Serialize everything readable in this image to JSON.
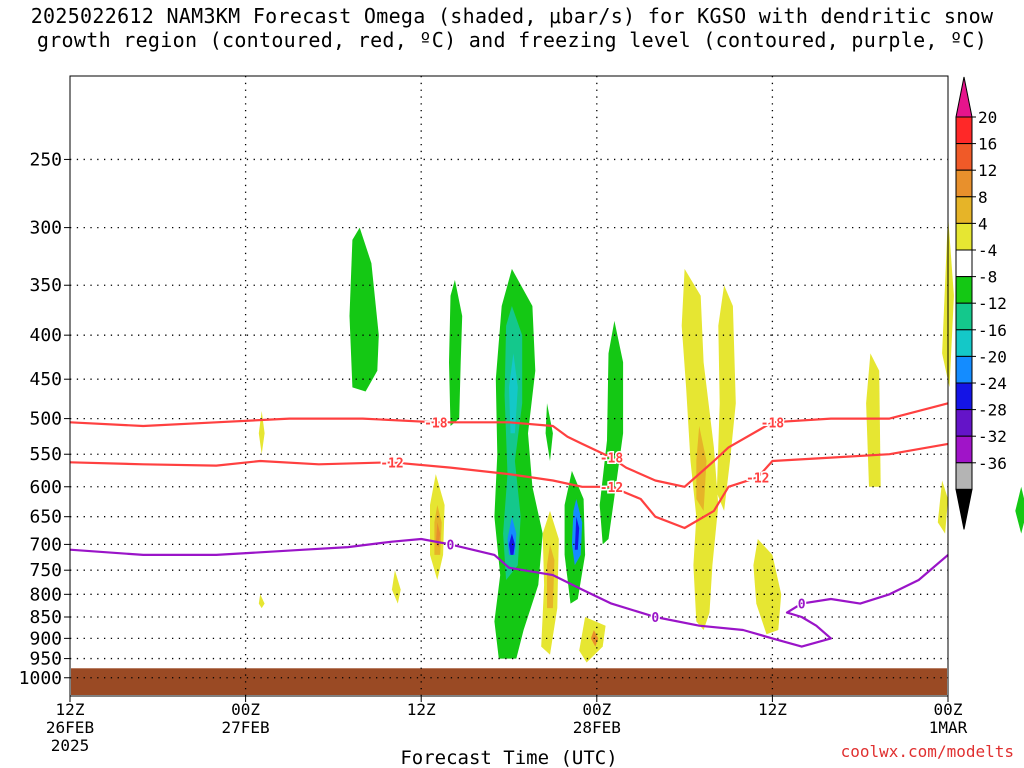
{
  "title": {
    "line1": "2025022612 NAM3KM Forecast Omega (shaded, μbar/s) for KGSO with dendritic snow",
    "line2": "growth region (contoured, red, ºC) and freezing level (contoured, purple, ºC)"
  },
  "credit": "coolwx.com/modelts",
  "chart_data": {
    "type": "heatmap",
    "title": "2025022612 NAM3KM Forecast Omega (shaded, μbar/s) for KGSO with dendritic snow growth region (contoured, red, ºC) and freezing level (contoured, purple, ºC)",
    "xlabel": "Forecast Time (UTC)",
    "ylabel": "",
    "xlim_hours": [
      0,
      60
    ],
    "ylim_hpa": [
      1050,
      200
    ],
    "y_scale": "log",
    "yticks": [
      250,
      300,
      350,
      400,
      450,
      500,
      550,
      600,
      650,
      700,
      750,
      800,
      850,
      900,
      950,
      1000
    ],
    "xticks": [
      {
        "hour": 0,
        "lines": [
          "12Z",
          "26FEB",
          "2025"
        ]
      },
      {
        "hour": 12,
        "lines": [
          "00Z",
          "27FEB"
        ]
      },
      {
        "hour": 24,
        "lines": [
          "12Z"
        ]
      },
      {
        "hour": 36,
        "lines": [
          "00Z",
          "28FEB"
        ]
      },
      {
        "hour": 48,
        "lines": [
          "12Z"
        ]
      },
      {
        "hour": 60,
        "lines": [
          "00Z",
          "1MAR"
        ]
      }
    ],
    "grid": true,
    "ground_pressure": 975,
    "ground_color": "#9a4a24",
    "colorbar": {
      "labels": [
        "20",
        "16",
        "12",
        "8",
        "4",
        "-4",
        "-8",
        "-12",
        "-16",
        "-20",
        "-24",
        "-28",
        "-32",
        "-36"
      ],
      "colors": [
        "#ff2828",
        "#f05a28",
        "#e8902c",
        "#e6b428",
        "#e6e632",
        "#ffffff",
        "#14c814",
        "#14c88c",
        "#14c8c8",
        "#148cff",
        "#1414e6",
        "#6414c8",
        "#a014c8",
        "#b4b4b4"
      ],
      "top_color": "#e6148c",
      "bottom_color": "#000000"
    },
    "omega_regions": [
      {
        "color": "#14c814",
        "points": [
          [
            19.8,
            300
          ],
          [
            20.6,
            330
          ],
          [
            21.1,
            400
          ],
          [
            21.0,
            440
          ],
          [
            20.2,
            465
          ],
          [
            19.3,
            460
          ],
          [
            19.1,
            380
          ],
          [
            19.3,
            310
          ]
        ]
      },
      {
        "color": "#14c814",
        "points": [
          [
            26.3,
            345
          ],
          [
            26.8,
            380
          ],
          [
            26.7,
            430
          ],
          [
            26.6,
            500
          ],
          [
            26.0,
            510
          ],
          [
            25.9,
            430
          ],
          [
            26.0,
            360
          ]
        ]
      },
      {
        "color": "#14c814",
        "points": [
          [
            30.2,
            335
          ],
          [
            31.6,
            370
          ],
          [
            31.8,
            440
          ],
          [
            31.3,
            520
          ],
          [
            31.6,
            600
          ],
          [
            32.3,
            680
          ],
          [
            32.0,
            780
          ],
          [
            31.0,
            880
          ],
          [
            30.5,
            950
          ],
          [
            29.3,
            950
          ],
          [
            29.0,
            860
          ],
          [
            29.4,
            760
          ],
          [
            29.0,
            650
          ],
          [
            29.2,
            550
          ],
          [
            29.1,
            450
          ],
          [
            29.5,
            370
          ]
        ]
      },
      {
        "color": "#14c88c",
        "points": [
          [
            30.2,
            370
          ],
          [
            30.9,
            400
          ],
          [
            30.9,
            480
          ],
          [
            30.4,
            560
          ],
          [
            30.8,
            650
          ],
          [
            30.6,
            740
          ],
          [
            29.8,
            770
          ],
          [
            29.6,
            680
          ],
          [
            29.9,
            580
          ],
          [
            29.7,
            470
          ],
          [
            29.8,
            390
          ]
        ]
      },
      {
        "color": "#14c8c8",
        "points": [
          [
            30.3,
            420
          ],
          [
            30.6,
            460
          ],
          [
            30.4,
            520
          ],
          [
            30.1,
            520
          ],
          [
            30.0,
            460
          ]
        ]
      },
      {
        "color": "#148cff",
        "points": [
          [
            30.2,
            650
          ],
          [
            30.5,
            680
          ],
          [
            30.4,
            720
          ],
          [
            30.0,
            720
          ],
          [
            29.9,
            690
          ]
        ]
      },
      {
        "color": "#1414e6",
        "points": [
          [
            30.2,
            680
          ],
          [
            30.4,
            700
          ],
          [
            30.3,
            720
          ],
          [
            30.1,
            720
          ],
          [
            30.0,
            700
          ]
        ]
      },
      {
        "color": "#14c814",
        "points": [
          [
            32.6,
            480
          ],
          [
            33.0,
            520
          ],
          [
            32.8,
            560
          ],
          [
            32.5,
            520
          ]
        ]
      },
      {
        "color": "#14c814",
        "points": [
          [
            34.3,
            575
          ],
          [
            35.1,
            620
          ],
          [
            35.2,
            720
          ],
          [
            34.7,
            810
          ],
          [
            34.2,
            820
          ],
          [
            33.8,
            720
          ],
          [
            33.8,
            630
          ]
        ]
      },
      {
        "color": "#148cff",
        "points": [
          [
            34.6,
            620
          ],
          [
            35.0,
            660
          ],
          [
            34.9,
            720
          ],
          [
            34.5,
            740
          ],
          [
            34.3,
            700
          ],
          [
            34.4,
            640
          ]
        ]
      },
      {
        "color": "#1414e6",
        "points": [
          [
            34.6,
            650
          ],
          [
            34.8,
            670
          ],
          [
            34.7,
            710
          ],
          [
            34.5,
            710
          ]
        ]
      },
      {
        "color": "#14c814",
        "points": [
          [
            37.2,
            385
          ],
          [
            37.8,
            430
          ],
          [
            37.8,
            520
          ],
          [
            37.3,
            600
          ],
          [
            36.8,
            690
          ],
          [
            36.4,
            700
          ],
          [
            36.2,
            630
          ],
          [
            36.7,
            530
          ],
          [
            36.8,
            420
          ]
        ]
      },
      {
        "color": "#14c814",
        "points": [
          [
            65.0,
            600
          ],
          [
            65.4,
            640
          ],
          [
            65.0,
            680
          ],
          [
            64.6,
            640
          ]
        ]
      }
    ],
    "omega_positive_regions": [
      {
        "color": "#e6e632",
        "points": [
          [
            42.0,
            335
          ],
          [
            43.1,
            360
          ],
          [
            43.3,
            430
          ],
          [
            44.0,
            540
          ],
          [
            44.3,
            630
          ],
          [
            43.9,
            740
          ],
          [
            43.7,
            840
          ],
          [
            43.3,
            880
          ],
          [
            42.8,
            860
          ],
          [
            42.6,
            740
          ],
          [
            42.8,
            650
          ],
          [
            42.4,
            560
          ],
          [
            42.1,
            460
          ],
          [
            41.8,
            390
          ]
        ]
      },
      {
        "color": "#e6e632",
        "points": [
          [
            44.7,
            350
          ],
          [
            45.3,
            370
          ],
          [
            45.5,
            480
          ],
          [
            45.1,
            560
          ],
          [
            44.7,
            640
          ],
          [
            44.2,
            610
          ],
          [
            44.4,
            480
          ],
          [
            44.3,
            390
          ]
        ]
      },
      {
        "color": "#e6e632",
        "points": [
          [
            47.0,
            690
          ],
          [
            48.0,
            720
          ],
          [
            48.6,
            800
          ],
          [
            48.4,
            880
          ],
          [
            47.6,
            890
          ],
          [
            46.9,
            820
          ],
          [
            46.7,
            740
          ]
        ]
      },
      {
        "color": "#e6e632",
        "points": [
          [
            54.7,
            420
          ],
          [
            55.3,
            440
          ],
          [
            55.4,
            600
          ],
          [
            54.6,
            600
          ],
          [
            54.4,
            480
          ]
        ]
      },
      {
        "color": "#e6e632",
        "points": [
          [
            60.0,
            290
          ],
          [
            60.4,
            360
          ],
          [
            60.1,
            460
          ],
          [
            59.6,
            420
          ]
        ]
      },
      {
        "color": "#e6e632",
        "points": [
          [
            59.6,
            590
          ],
          [
            60.0,
            620
          ],
          [
            59.8,
            680
          ],
          [
            59.3,
            660
          ]
        ]
      },
      {
        "color": "#e6e632",
        "points": [
          [
            25.0,
            580
          ],
          [
            25.6,
            630
          ],
          [
            25.5,
            720
          ],
          [
            25.1,
            770
          ],
          [
            24.6,
            720
          ],
          [
            24.6,
            630
          ]
        ]
      },
      {
        "color": "#e6b428",
        "points": [
          [
            25.1,
            630
          ],
          [
            25.4,
            660
          ],
          [
            25.3,
            720
          ],
          [
            24.9,
            720
          ],
          [
            24.9,
            660
          ]
        ]
      },
      {
        "color": "#e8902c",
        "points": [
          [
            25.1,
            660
          ],
          [
            25.3,
            680
          ],
          [
            25.2,
            705
          ],
          [
            25.0,
            700
          ]
        ]
      },
      {
        "color": "#e6e632",
        "points": [
          [
            32.8,
            640
          ],
          [
            33.4,
            690
          ],
          [
            33.3,
            830
          ],
          [
            32.8,
            940
          ],
          [
            32.2,
            920
          ],
          [
            32.4,
            780
          ],
          [
            32.3,
            680
          ]
        ]
      },
      {
        "color": "#e6b428",
        "points": [
          [
            32.8,
            700
          ],
          [
            33.1,
            730
          ],
          [
            33.0,
            830
          ],
          [
            32.6,
            830
          ],
          [
            32.6,
            740
          ]
        ]
      },
      {
        "color": "#e6e632",
        "points": [
          [
            35.2,
            850
          ],
          [
            36.6,
            870
          ],
          [
            36.4,
            920
          ],
          [
            35.3,
            960
          ],
          [
            34.8,
            930
          ]
        ]
      },
      {
        "color": "#e8902c",
        "points": [
          [
            35.8,
            880
          ],
          [
            36.1,
            900
          ],
          [
            35.9,
            920
          ],
          [
            35.6,
            900
          ]
        ]
      },
      {
        "color": "#e6b428",
        "points": [
          [
            43.0,
            510
          ],
          [
            43.5,
            560
          ],
          [
            43.3,
            640
          ],
          [
            42.8,
            620
          ],
          [
            42.8,
            560
          ]
        ]
      },
      {
        "color": "#e6e632",
        "points": [
          [
            22.2,
            750
          ],
          [
            22.6,
            790
          ],
          [
            22.4,
            820
          ],
          [
            22.0,
            790
          ]
        ]
      },
      {
        "color": "#e6e632",
        "points": [
          [
            13.0,
            800
          ],
          [
            13.3,
            820
          ],
          [
            13.1,
            830
          ],
          [
            12.9,
            820
          ]
        ]
      },
      {
        "color": "#e6e632",
        "points": [
          [
            13.1,
            490
          ],
          [
            13.3,
            520
          ],
          [
            13.1,
            550
          ],
          [
            12.9,
            520
          ]
        ]
      }
    ],
    "contours": [
      {
        "label": "-18",
        "color": "#ff4040",
        "points": [
          [
            0,
            505
          ],
          [
            5,
            510
          ],
          [
            10,
            505
          ],
          [
            15,
            500
          ],
          [
            20,
            500
          ],
          [
            25,
            505
          ],
          [
            30,
            505
          ],
          [
            33,
            510
          ],
          [
            34,
            525
          ],
          [
            35,
            535
          ],
          [
            37,
            555
          ],
          [
            38,
            570
          ],
          [
            40,
            590
          ],
          [
            42,
            600
          ],
          [
            44,
            560
          ],
          [
            45,
            540
          ],
          [
            48,
            505
          ],
          [
            52,
            500
          ],
          [
            56,
            500
          ],
          [
            60,
            480
          ]
        ]
      },
      {
        "label": "-12",
        "color": "#ff4040",
        "points": [
          [
            0,
            562
          ],
          [
            5,
            565
          ],
          [
            10,
            567
          ],
          [
            13,
            560
          ],
          [
            17,
            565
          ],
          [
            22,
            562
          ],
          [
            26,
            570
          ],
          [
            30,
            580
          ],
          [
            33,
            590
          ],
          [
            35,
            600
          ],
          [
            37,
            600
          ],
          [
            39,
            620
          ],
          [
            40,
            650
          ],
          [
            42,
            670
          ],
          [
            44,
            640
          ],
          [
            45,
            600
          ],
          [
            47,
            585
          ],
          [
            48,
            560
          ],
          [
            52,
            555
          ],
          [
            56,
            550
          ],
          [
            60,
            535
          ]
        ]
      },
      {
        "label": "0",
        "color": "#9a14c8",
        "points": [
          [
            0,
            710
          ],
          [
            5,
            720
          ],
          [
            10,
            720
          ],
          [
            13,
            715
          ],
          [
            16,
            710
          ],
          [
            19,
            705
          ],
          [
            22,
            695
          ],
          [
            24,
            690
          ],
          [
            26,
            700
          ],
          [
            29,
            720
          ],
          [
            30,
            745
          ],
          [
            31,
            750
          ],
          [
            33,
            760
          ],
          [
            35,
            790
          ],
          [
            37,
            820
          ],
          [
            40,
            850
          ],
          [
            43,
            870
          ],
          [
            46,
            880
          ],
          [
            48,
            900
          ],
          [
            50,
            920
          ],
          [
            52,
            900
          ],
          [
            51,
            870
          ],
          [
            50,
            850
          ],
          [
            49,
            840
          ],
          [
            50,
            820
          ],
          [
            52,
            810
          ],
          [
            54,
            820
          ],
          [
            56,
            800
          ],
          [
            58,
            770
          ],
          [
            60,
            720
          ]
        ]
      }
    ]
  }
}
